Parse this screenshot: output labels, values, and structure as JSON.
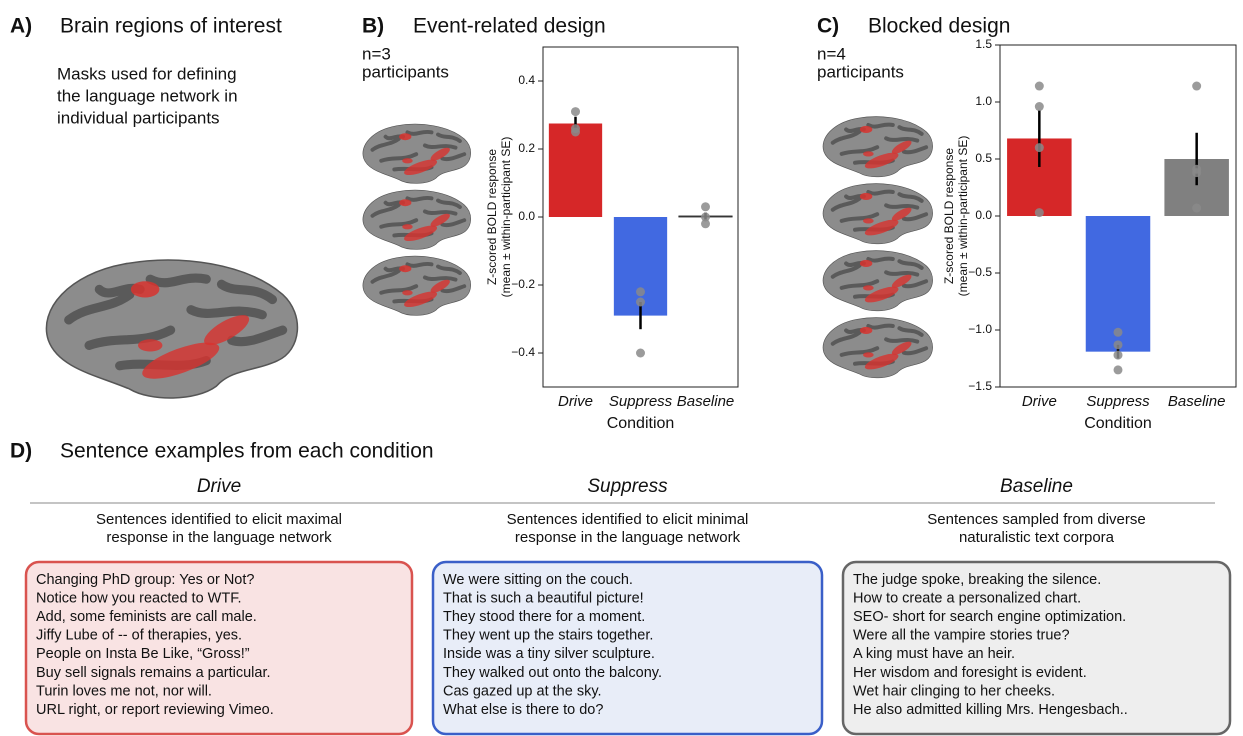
{
  "panel_a": {
    "label": "A)",
    "title": "Brain regions of interest",
    "caption": [
      "Masks used for defining",
      "the language network in",
      "individual participants"
    ]
  },
  "chart_data": [
    {
      "type": "bar",
      "panel_label": "B)",
      "title": "Event-related design",
      "annotation": [
        "n=3",
        "participants"
      ],
      "categories": [
        "Drive",
        "Suppress",
        "Baseline"
      ],
      "values": [
        0.275,
        -0.29,
        0.003
      ],
      "errors": [
        0.02,
        0.04,
        0.01
      ],
      "points": [
        [
          0.31,
          0.26,
          0.25
        ],
        [
          -0.22,
          -0.25,
          -0.4
        ],
        [
          0.03,
          0.0,
          -0.02
        ]
      ],
      "colors": [
        "#d62728",
        "#4169e1",
        "#808080"
      ],
      "ylabel": [
        "Z-scored BOLD response",
        "(mean ± within-participant SE)"
      ],
      "xlabel": "Condition",
      "ylim": [
        -0.5,
        0.5
      ],
      "yticks": [
        {
          "value": -0.4,
          "label": "−0.4"
        },
        {
          "value": -0.2,
          "label": "−0.2"
        },
        {
          "value": 0,
          "label": "0.0"
        },
        0.2,
        0.4
      ],
      "grid": false
    },
    {
      "type": "bar",
      "panel_label": "C)",
      "title": "Blocked design",
      "annotation": [
        "n=4",
        "participants"
      ],
      "categories": [
        "Drive",
        "Suppress",
        "Baseline"
      ],
      "values": [
        0.68,
        -1.19,
        0.5
      ],
      "errors": [
        0.25,
        0.06,
        0.23
      ],
      "points": [
        [
          1.14,
          0.96,
          0.6,
          0.03
        ],
        [
          -1.02,
          -1.13,
          -1.22,
          -1.35
        ],
        [
          1.14,
          0.41,
          0.38,
          0.07
        ]
      ],
      "colors": [
        "#d62728",
        "#4169e1",
        "#808080"
      ],
      "ylabel": [
        "Z-scored BOLD response",
        "(mean ± within-participant SE)"
      ],
      "xlabel": "Condition",
      "ylim": [
        -1.5,
        1.5
      ],
      "yticks": [
        {
          "value": -1.5,
          "label": "−1.5"
        },
        {
          "value": -1,
          "label": "−1.0"
        },
        {
          "value": -0.5,
          "label": "−0.5"
        },
        {
          "value": 0,
          "label": "0.0"
        },
        0.5,
        {
          "value": 1,
          "label": "1.0"
        },
        1.5
      ],
      "grid": false
    }
  ],
  "panel_d": {
    "label": "D)",
    "title": "Sentence examples from each condition",
    "columns": [
      {
        "name": "Drive",
        "description": [
          "Sentences identified to elicit maximal",
          "response in the language network"
        ],
        "sentences": [
          "Changing PhD group: Yes or Not?",
          "Notice how you reacted to WTF.",
          "Add, some feminists are call male.",
          "Jiffy Lube of -- of therapies, yes.",
          "People on Insta Be Like, “Gross!”",
          "Buy sell signals remains a particular.",
          "Turin loves me not, nor will.",
          "URL right, or report reviewing Vimeo."
        ]
      },
      {
        "name": "Suppress",
        "description": [
          "Sentences identified to elicit minimal",
          "response in the language network"
        ],
        "sentences": [
          "We were sitting on the couch.",
          "That is such a beautiful picture!",
          "They stood there for a moment.",
          "They went up the stairs together.",
          "Inside was a tiny silver sculpture.",
          "They walked out onto the balcony.",
          "Cas gazed up at the sky.",
          "What else is there to do?"
        ]
      },
      {
        "name": "Baseline",
        "description": [
          "Sentences sampled from diverse",
          "naturalistic text corpora"
        ],
        "sentences": [
          "The judge spoke, breaking the silence.",
          "How to create a personalized chart.",
          "SEO- short for search engine optimization.",
          "Were all the vampire stories true?",
          "A king must have an heir.",
          "Her wisdom and foresight is evident.",
          "Wet hair clinging to her cheeks.",
          "He also admitted killing Mrs. Hengesbach.."
        ]
      }
    ]
  }
}
